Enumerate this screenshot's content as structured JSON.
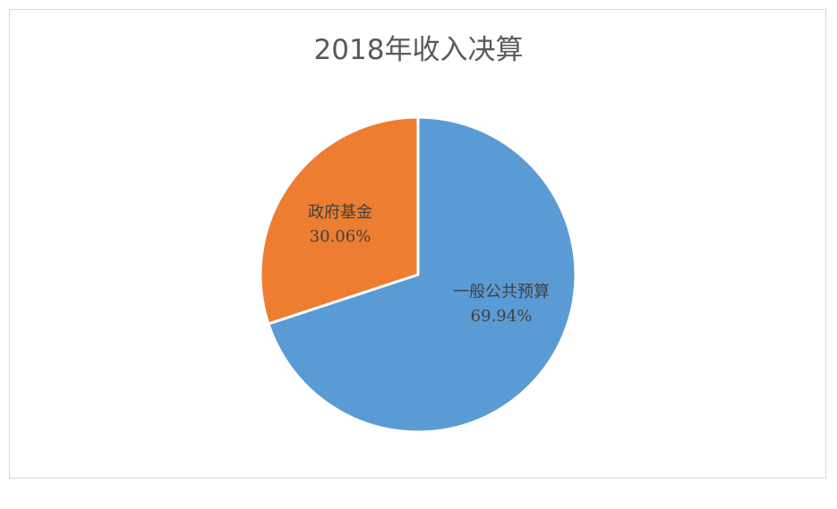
{
  "chart_data": {
    "type": "pie",
    "title": "2018年收入决算",
    "slices": [
      {
        "name": "一般公共预算",
        "value": 69.94,
        "label": "69.94%",
        "color": "#5b9bd5"
      },
      {
        "name": "政府基金",
        "value": 30.06,
        "label": "30.06%",
        "color": "#ed7d31"
      }
    ]
  }
}
